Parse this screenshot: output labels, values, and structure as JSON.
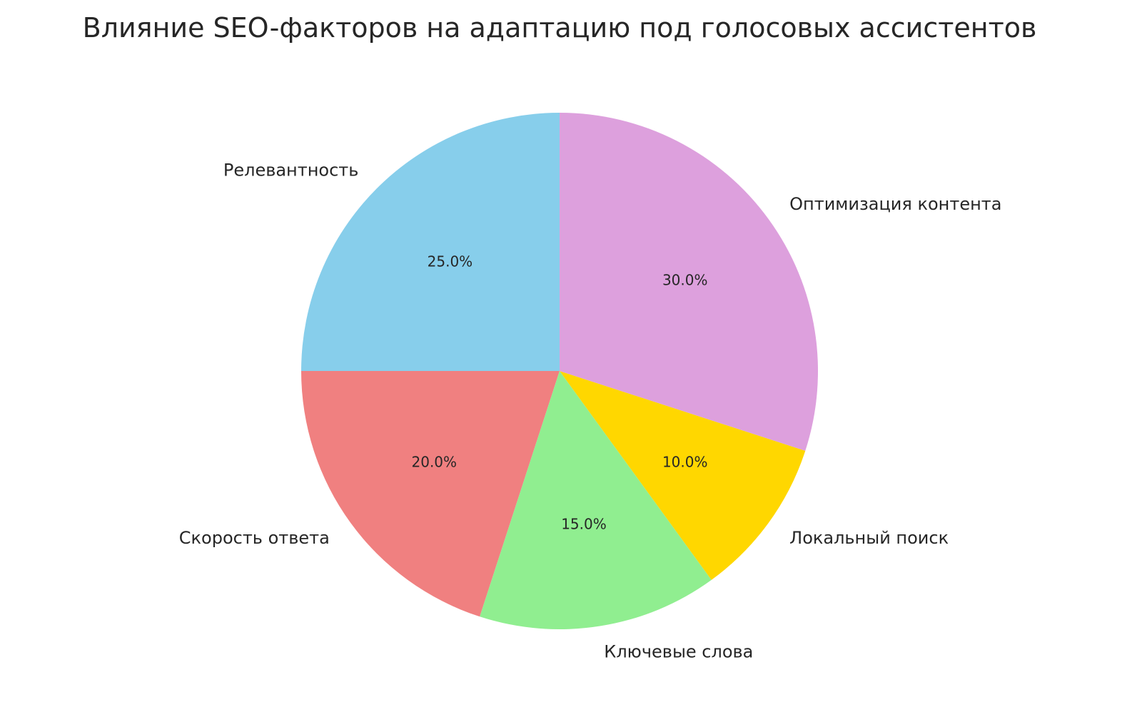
{
  "chart_data": {
    "type": "pie",
    "title": "Влияние SEO-факторов на адаптацию под голосовых ассистентов",
    "start_angle_deg": 90,
    "direction": "counterclockwise",
    "slices": [
      {
        "label": "Релевантность",
        "value": 25,
        "pct_label": "25.0%",
        "color": "#87CEEB"
      },
      {
        "label": "Скорость ответа",
        "value": 20,
        "pct_label": "20.0%",
        "color": "#F08080"
      },
      {
        "label": "Ключевые слова",
        "value": 15,
        "pct_label": "15.0%",
        "color": "#90EE90"
      },
      {
        "label": "Локальный поиск",
        "value": 10,
        "pct_label": "10.0%",
        "color": "#FFD700"
      },
      {
        "label": "Оптимизация контента",
        "value": 30,
        "pct_label": "30.0%",
        "color": "#DDA0DD"
      }
    ]
  }
}
